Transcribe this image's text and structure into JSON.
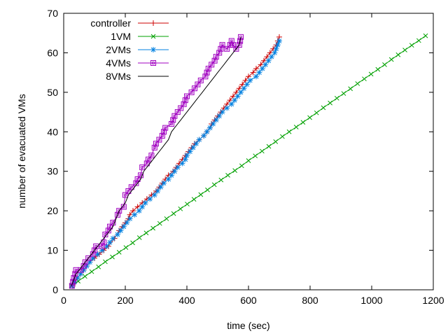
{
  "chart_data": {
    "type": "line",
    "xlabel": "time (sec)",
    "ylabel": "number of evacuated VMs",
    "xlim": [
      0,
      1200
    ],
    "ylim": [
      0,
      70
    ],
    "xticks": [
      "0",
      "200",
      "400",
      "600",
      "800",
      "1000",
      "1200"
    ],
    "yticks": [
      "0",
      "10",
      "20",
      "30",
      "40",
      "50",
      "60",
      "70"
    ],
    "legend_position": "top-left",
    "grid": false,
    "series": [
      {
        "name": "controller",
        "color": "#cc0000",
        "marker": "plus",
        "x": [
          30,
          38,
          45,
          55,
          65,
          75,
          85,
          100,
          115,
          130,
          145,
          165,
          180,
          190,
          200,
          210,
          215,
          225,
          240,
          255,
          270,
          285,
          300,
          310,
          320,
          330,
          340,
          355,
          365,
          375,
          385,
          395,
          405,
          415,
          425,
          440,
          455,
          465,
          475,
          480,
          490,
          500,
          510,
          520,
          530,
          540,
          550,
          560,
          570,
          580,
          590,
          600,
          615,
          625,
          640,
          650,
          660,
          670,
          680,
          690,
          695,
          700
        ],
        "y": [
          1,
          2,
          3,
          4,
          5,
          6,
          7,
          8,
          9,
          10,
          11,
          13,
          15,
          16,
          17,
          18,
          19,
          20,
          21,
          22,
          23,
          24,
          25,
          26,
          27,
          28,
          29,
          30,
          31,
          32,
          33,
          34,
          35,
          36,
          37,
          38,
          39,
          40,
          41,
          42,
          43,
          44,
          45,
          46,
          47,
          48,
          49,
          50,
          51,
          52,
          53,
          54,
          55,
          56,
          57,
          58,
          59,
          60,
          61,
          62,
          63,
          64
        ]
      },
      {
        "name": "1VM",
        "color": "#00a000",
        "marker": "cross",
        "x": [
          25,
          47,
          69,
          91,
          113,
          135,
          158,
          180,
          202,
          224,
          246,
          268,
          290,
          312,
          334,
          357,
          379,
          401,
          423,
          445,
          467,
          489,
          511,
          533,
          556,
          578,
          600,
          622,
          644,
          666,
          688,
          710,
          732,
          755,
          777,
          799,
          821,
          843,
          865,
          887,
          909,
          931,
          954,
          976,
          998,
          1020,
          1042,
          1064,
          1086,
          1108,
          1130,
          1153,
          1175
        ],
        "y": [
          1,
          2.2,
          3.4,
          4.6,
          5.8,
          7.1,
          8.3,
          9.5,
          10.7,
          11.9,
          13.2,
          14.4,
          15.6,
          16.8,
          18.0,
          19.3,
          20.5,
          21.7,
          22.9,
          24.1,
          25.3,
          26.6,
          27.8,
          29.0,
          30.2,
          31.4,
          32.7,
          33.9,
          35.1,
          36.3,
          37.5,
          38.8,
          40.0,
          41.2,
          42.4,
          43.6,
          44.8,
          46.1,
          47.3,
          48.5,
          49.7,
          50.9,
          52.2,
          53.4,
          54.6,
          55.8,
          57.0,
          58.3,
          59.5,
          60.7,
          61.9,
          63.1,
          64.3
        ]
      },
      {
        "name": "2VMs",
        "color": "#0080e0",
        "marker": "star",
        "x": [
          28,
          35,
          45,
          55,
          65,
          75,
          85,
          95,
          110,
          125,
          140,
          150,
          160,
          175,
          185,
          195,
          205,
          215,
          230,
          245,
          255,
          265,
          280,
          295,
          305,
          315,
          325,
          340,
          350,
          360,
          370,
          385,
          395,
          400,
          410,
          420,
          430,
          440,
          455,
          465,
          475,
          485,
          495,
          505,
          515,
          530,
          545,
          555,
          565,
          575,
          585,
          595,
          605,
          625,
          635,
          645,
          655,
          665,
          675,
          685,
          690,
          695,
          700
        ],
        "y": [
          1,
          2,
          3,
          4,
          5,
          6,
          7,
          8,
          9,
          10,
          11,
          12,
          13,
          14,
          15,
          16,
          17,
          18,
          19,
          20,
          21,
          22,
          23,
          24,
          25,
          26,
          27,
          28,
          29,
          30,
          31,
          32,
          33,
          34,
          35,
          36,
          37,
          38,
          39,
          40,
          41,
          42,
          43,
          44,
          45,
          46,
          47,
          48,
          49,
          50,
          51,
          52,
          53,
          54,
          55,
          56,
          57,
          58,
          59,
          60,
          61,
          62,
          63
        ]
      },
      {
        "name": "4VMs",
        "color": "#a000c0",
        "marker": "square",
        "x": [
          27,
          30,
          33,
          37,
          40,
          55,
          65,
          70,
          80,
          95,
          100,
          105,
          125,
          130,
          135,
          145,
          150,
          160,
          175,
          180,
          195,
          200,
          210,
          220,
          235,
          240,
          250,
          255,
          270,
          275,
          285,
          295,
          300,
          310,
          320,
          325,
          330,
          350,
          355,
          360,
          370,
          380,
          390,
          395,
          400,
          415,
          425,
          435,
          445,
          460,
          465,
          470,
          480,
          490,
          495,
          505,
          510,
          515,
          530,
          540,
          545,
          550,
          560,
          570,
          573,
          575
        ],
        "y": [
          1,
          2,
          3,
          4,
          5,
          5,
          6,
          7,
          8,
          9,
          10,
          11,
          11,
          12,
          14,
          15,
          16,
          17,
          19,
          20,
          21,
          24,
          25,
          26,
          27,
          28,
          29,
          31,
          32,
          33,
          34,
          36,
          37,
          38,
          39,
          40,
          41,
          42,
          43,
          44,
          45,
          46,
          47,
          48,
          49,
          50,
          51,
          52,
          53,
          54,
          55,
          56,
          57,
          58,
          59,
          60,
          61,
          62,
          61,
          62,
          63,
          62,
          61,
          62,
          63,
          64
        ]
      },
      {
        "name": "8VMs",
        "color": "#000000",
        "marker": "none",
        "x": [
          25,
          30,
          35,
          40,
          50,
          60,
          70,
          80,
          90,
          100,
          110,
          120,
          130,
          140,
          150,
          160,
          170,
          180,
          190,
          200,
          210,
          220,
          230,
          240,
          250,
          260,
          270,
          280,
          290,
          300,
          310,
          320,
          330,
          340,
          350,
          360,
          370,
          380,
          390,
          400,
          410,
          420,
          430,
          440,
          450,
          460,
          470,
          480,
          490,
          500,
          510,
          520,
          530,
          540,
          550,
          560,
          570,
          575
        ],
        "y": [
          1,
          2,
          3,
          4,
          5,
          6,
          7,
          8,
          9,
          10,
          11,
          12,
          13,
          14,
          15,
          16,
          18,
          20,
          21,
          22,
          24,
          25,
          26,
          27,
          28,
          30,
          31,
          32,
          33,
          34,
          35,
          36,
          37,
          38,
          40,
          41,
          42,
          43,
          44,
          45,
          46,
          47,
          48,
          49,
          50,
          51,
          52,
          53,
          54,
          55,
          56,
          57,
          58,
          59,
          60,
          61,
          62,
          64
        ]
      }
    ]
  }
}
